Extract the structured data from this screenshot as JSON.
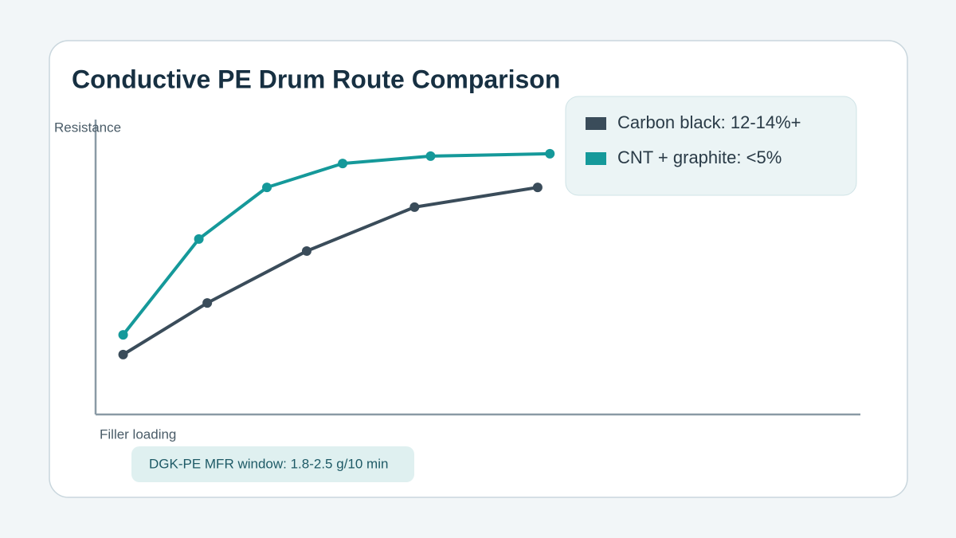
{
  "chart_data": {
    "type": "line",
    "title": "Conductive PE Drum Route Comparison",
    "y_label": "Resistance",
    "x_label": "Filler loading",
    "annotation": "DGK-PE MFR window: 1.8-2.5 g/10 min",
    "xlim": [
      0,
      100
    ],
    "ylim": [
      0,
      100
    ],
    "series": [
      {
        "name": "Carbon black: 12-14%+",
        "color": "#3a4c5a",
        "x": [
          3.6,
          14.6,
          27.6,
          41.7,
          57.8
        ],
        "values": [
          20.3,
          37.8,
          55.4,
          70.3,
          77.0
        ]
      },
      {
        "name": "CNT + graphite: <5%",
        "color": "#15999a",
        "x": [
          3.6,
          13.5,
          22.4,
          32.3,
          43.8,
          59.4
        ],
        "values": [
          27.0,
          59.5,
          77.0,
          85.1,
          87.6,
          88.4
        ]
      }
    ]
  }
}
